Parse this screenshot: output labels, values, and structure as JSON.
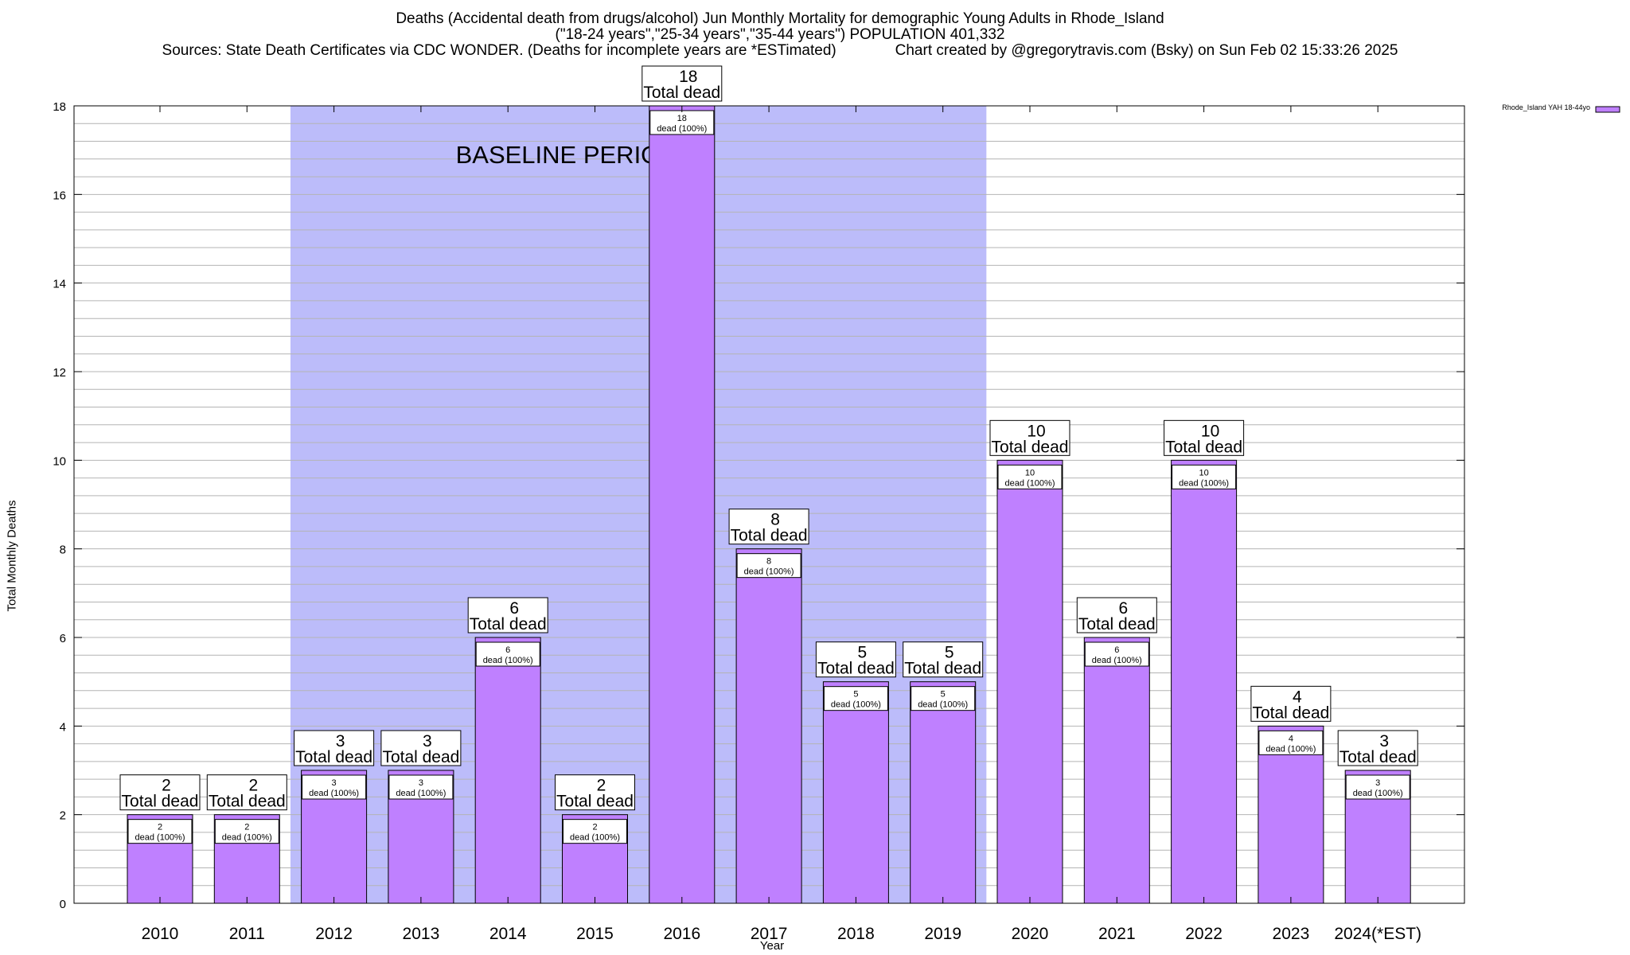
{
  "title": {
    "line1": "Deaths (Accidental death from drugs/alcohol) Jun Monthly Mortality for demographic Young Adults in Rhode_Island",
    "line2": "(\"18-24 years\",\"25-34 years\",\"35-44 years\") POPULATION 401,332",
    "line3": "Sources: State Death Certificates via CDC WONDER. (Deaths for incomplete years are *ESTimated)              Chart created by @gregorytravis.com (Bsky) on Sun Feb 02 15:33:26 2025"
  },
  "colors": {
    "bar": "#bf80ff",
    "baseline_band": "#bcbcfa",
    "grid": "#b4b4b4"
  },
  "chart_data": {
    "type": "bar",
    "xlabel": "Year",
    "ylabel": "Total Monthly Deaths",
    "ylim": [
      0,
      18
    ],
    "yticks": [
      0,
      2,
      4,
      6,
      8,
      10,
      12,
      14,
      16,
      18
    ],
    "grid": true,
    "legend_position": "top-right",
    "categories": [
      "2010",
      "2011",
      "2012",
      "2013",
      "2014",
      "2015",
      "2016",
      "2017",
      "2018",
      "2019",
      "2020",
      "2021",
      "2022",
      "2023",
      "2024(*EST)"
    ],
    "series": [
      {
        "name": "Rhode_Island YAH 18-44yo",
        "values": [
          2,
          2,
          3,
          3,
          6,
          2,
          18,
          8,
          5,
          5,
          10,
          6,
          10,
          4,
          3
        ]
      }
    ],
    "total_label_suffix": "Total dead",
    "inner_label_suffix": "dead (100%)",
    "annotation": {
      "text": "BASELINE PERIOD",
      "start_category": "2012",
      "end_category": "2019"
    }
  }
}
